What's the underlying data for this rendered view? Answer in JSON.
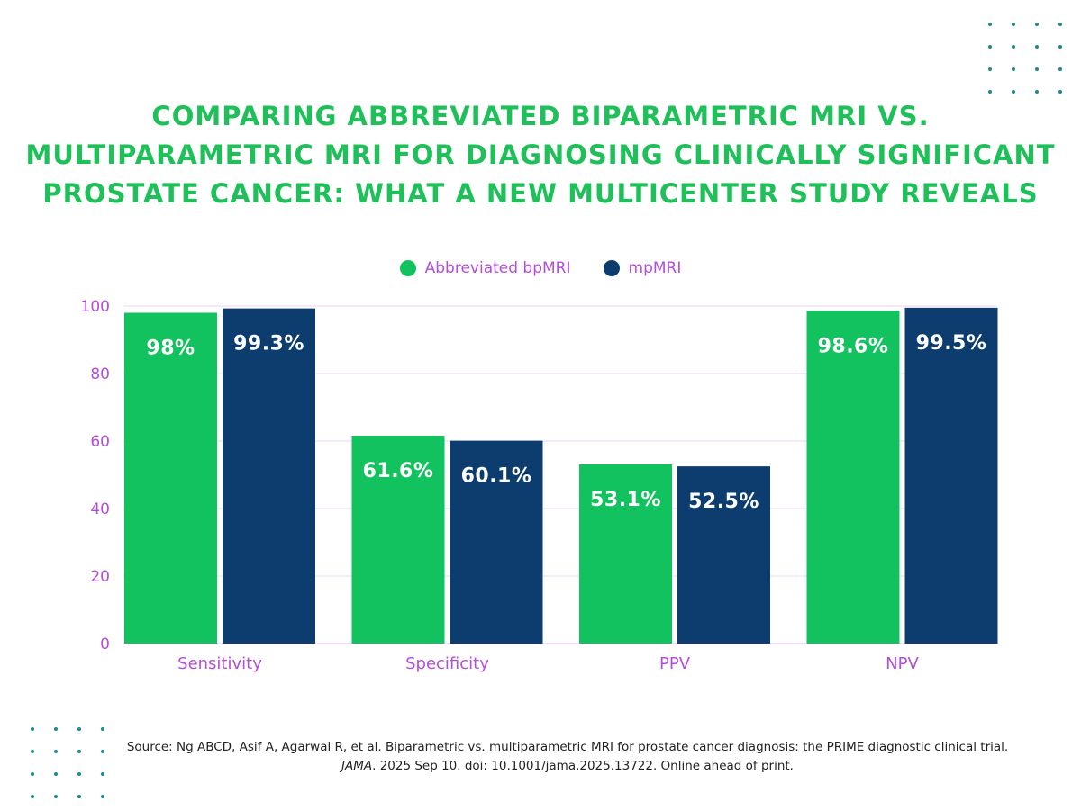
{
  "title_lines": [
    "COMPARING ABBREVIATED BIPARAMETRIC MRI VS.",
    "MULTIPARAMETRIC MRI FOR DIAGNOSING CLINICALLY SIGNIFICANT",
    "PROSTATE CANCER: WHAT A NEW MULTICENTER STUDY REVEALS"
  ],
  "colors": {
    "title": "#1fbf5a",
    "bpmri": "#12c25e",
    "mpmri": "#0c3d6e",
    "axis_text": "#b44ed8",
    "grid": "#ecd3f5",
    "dots": "#1e8a8f"
  },
  "legend": [
    {
      "label": "Abbreviated bpMRI",
      "color": "#12c25e"
    },
    {
      "label": "mpMRI",
      "color": "#0c3d6e"
    }
  ],
  "chart_data": {
    "type": "bar",
    "categories": [
      "Sensitivity",
      "Specificity",
      "PPV",
      "NPV"
    ],
    "series": [
      {
        "name": "Abbreviated bpMRI",
        "values": [
          98,
          61.6,
          53.1,
          98.6
        ],
        "labels": [
          "98%",
          "61.6%",
          "53.1%",
          "98.6%"
        ]
      },
      {
        "name": "mpMRI",
        "values": [
          99.3,
          60.1,
          52.5,
          99.5
        ],
        "labels": [
          "99.3%",
          "60.1%",
          "52.5%",
          "99.5%"
        ]
      }
    ],
    "ylim": [
      0,
      100
    ],
    "yticks": [
      0,
      20,
      40,
      60,
      80,
      100
    ],
    "grid": true,
    "legend_position": "top-center"
  },
  "source": {
    "prefix": "Source: Ng ABCD, Asif A, Agarwal R, et al. Biparametric vs. multiparametric MRI for prostate cancer diagnosis: the PRIME diagnostic clinical trial. ",
    "journal": "JAMA",
    "suffix": ". 2025 Sep 10. doi: 10.1001/jama.2025.13722. Online ahead of print."
  }
}
